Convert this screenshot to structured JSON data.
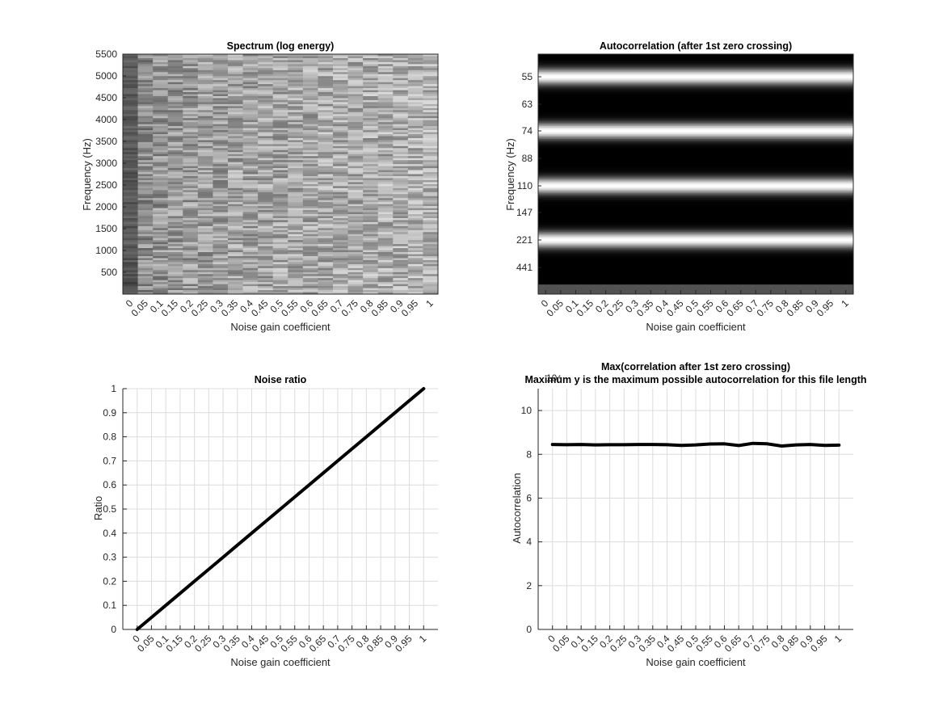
{
  "noise_gain_ticks": [
    "0",
    "0.05",
    "0.1",
    "0.15",
    "0.2",
    "0.25",
    "0.3",
    "0.35",
    "0.4",
    "0.45",
    "0.5",
    "0.55",
    "0.6",
    "0.65",
    "0.7",
    "0.75",
    "0.8",
    "0.85",
    "0.9",
    "0.95",
    "1"
  ],
  "chart_data": [
    {
      "type": "heatmap",
      "title": "Spectrum (log energy)",
      "xlabel": "Noise gain coefficient",
      "ylabel": "Frequency (Hz)",
      "x": [
        0,
        0.05,
        0.1,
        0.15,
        0.2,
        0.25,
        0.3,
        0.35,
        0.4,
        0.45,
        0.5,
        0.55,
        0.6,
        0.65,
        0.7,
        0.75,
        0.8,
        0.85,
        0.9,
        0.95,
        1
      ],
      "yticks": [
        "500",
        "1000",
        "1500",
        "2000",
        "2500",
        "3000",
        "3500",
        "4000",
        "4500",
        "5000",
        "5500"
      ],
      "ylim": [
        0,
        5500
      ],
      "colormap": "gray",
      "column_mean_level": [
        0.35,
        0.55,
        0.58,
        0.6,
        0.61,
        0.62,
        0.63,
        0.64,
        0.64,
        0.65,
        0.65,
        0.66,
        0.66,
        0.67,
        0.67,
        0.67,
        0.68,
        0.68,
        0.68,
        0.69,
        0.69
      ]
    },
    {
      "type": "heatmap",
      "title": "Autocorrelation (after 1st zero crossing)",
      "xlabel": "Noise gain coefficient",
      "ylabel": "Frequency (Hz)",
      "x": [
        0,
        0.05,
        0.1,
        0.15,
        0.2,
        0.25,
        0.3,
        0.35,
        0.4,
        0.45,
        0.5,
        0.55,
        0.6,
        0.65,
        0.7,
        0.75,
        0.8,
        0.85,
        0.9,
        0.95,
        1
      ],
      "yticks": [
        "55",
        "63",
        "74",
        "88",
        "110",
        "147",
        "221",
        "441"
      ],
      "colormap": "gray",
      "bright_bands_hz": [
        55,
        74,
        110,
        221
      ]
    },
    {
      "type": "line",
      "title": "Noise ratio",
      "xlabel": "Noise gain coefficient",
      "ylabel": "Ratio",
      "x": [
        0,
        0.05,
        0.1,
        0.15,
        0.2,
        0.25,
        0.3,
        0.35,
        0.4,
        0.45,
        0.5,
        0.55,
        0.6,
        0.65,
        0.7,
        0.75,
        0.8,
        0.85,
        0.9,
        0.95,
        1
      ],
      "y": [
        0,
        0.05,
        0.1,
        0.15,
        0.2,
        0.25,
        0.3,
        0.35,
        0.4,
        0.45,
        0.5,
        0.55,
        0.6,
        0.65,
        0.7,
        0.75,
        0.8,
        0.85,
        0.9,
        0.95,
        1
      ],
      "yticks": [
        "0",
        "0.1",
        "0.2",
        "0.3",
        "0.4",
        "0.5",
        "0.6",
        "0.7",
        "0.8",
        "0.9",
        "1"
      ],
      "ylim": [
        0,
        1
      ],
      "xlim": [
        -0.05,
        1.05
      ],
      "grid": true
    },
    {
      "type": "line",
      "title": "Max(correlation after 1st zero crossing)",
      "subtitle": "Maximum y is the maximum possible autocorrelation for this file length",
      "exponent_label": "10⁴",
      "xlabel": "Noise gain coefficient",
      "ylabel": "Autocorrelation",
      "x": [
        0,
        0.05,
        0.1,
        0.15,
        0.2,
        0.25,
        0.3,
        0.35,
        0.4,
        0.45,
        0.5,
        0.55,
        0.6,
        0.65,
        0.7,
        0.75,
        0.8,
        0.85,
        0.9,
        0.95,
        1
      ],
      "y": [
        8.45,
        8.44,
        8.45,
        8.43,
        8.44,
        8.44,
        8.45,
        8.45,
        8.44,
        8.41,
        8.43,
        8.47,
        8.48,
        8.4,
        8.5,
        8.48,
        8.38,
        8.43,
        8.45,
        8.41,
        8.42
      ],
      "yticks": [
        "0",
        "2",
        "4",
        "6",
        "8",
        "10"
      ],
      "ylim": [
        0,
        11
      ],
      "xlim": [
        -0.05,
        1.05
      ],
      "grid": true
    }
  ]
}
